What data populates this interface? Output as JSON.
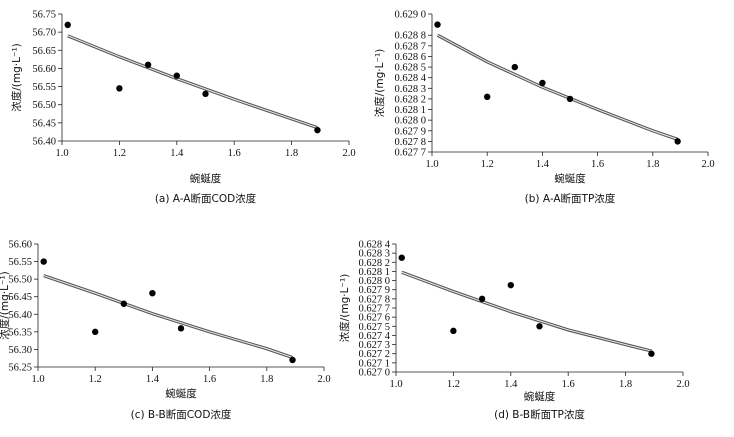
{
  "chart_data": [
    {
      "type": "scatter",
      "title": "",
      "caption": "(a) A-A断面COD浓度",
      "xlabel": "蜿蜒度",
      "ylabel": "浓度/(mg·L⁻¹)",
      "xlim": [
        1.0,
        2.0
      ],
      "ylim": [
        56.4,
        56.75
      ],
      "xticks": [
        "1.0",
        "1.2",
        "1.4",
        "1.6",
        "1.8",
        "2.0"
      ],
      "yticks": [
        "56.40",
        "56.45",
        "56.50",
        "56.55",
        "56.60",
        "56.65",
        "56.70",
        "56.75"
      ],
      "points": [
        {
          "x": 1.02,
          "y": 56.72
        },
        {
          "x": 1.2,
          "y": 56.545
        },
        {
          "x": 1.3,
          "y": 56.61
        },
        {
          "x": 1.4,
          "y": 56.58
        },
        {
          "x": 1.5,
          "y": 56.53
        },
        {
          "x": 1.89,
          "y": 56.43
        }
      ],
      "fit": [
        {
          "x": 1.02,
          "y": 56.69
        },
        {
          "x": 1.2,
          "y": 56.632
        },
        {
          "x": 1.4,
          "y": 56.572
        },
        {
          "x": 1.6,
          "y": 56.515
        },
        {
          "x": 1.8,
          "y": 56.461
        },
        {
          "x": 1.89,
          "y": 56.437
        }
      ]
    },
    {
      "type": "scatter",
      "title": "",
      "caption": "(b) A-A断面TP浓度",
      "xlabel": "蜿蜒度",
      "ylabel": "浓度/(mg·L⁻¹)",
      "xlim": [
        1.0,
        2.0
      ],
      "ylim": [
        0.6277,
        0.629
      ],
      "xticks": [
        "1.0",
        "1.2",
        "1.4",
        "1.6",
        "1.8",
        "2.0"
      ],
      "yticks": [
        "0.627 7",
        "0.627 8",
        "0.627 9",
        "0.628 0",
        "0.628 1",
        "0.628 2",
        "0.628 3",
        "0.628 4",
        "0.628 5",
        "0.628 6",
        "0.628 7",
        "0.628 8",
        "0.629 0"
      ],
      "yticks_values": [
        0.6277,
        0.6278,
        0.6279,
        0.628,
        0.6281,
        0.6282,
        0.6283,
        0.6284,
        0.6285,
        0.6286,
        0.6287,
        0.6288,
        0.629
      ],
      "points": [
        {
          "x": 1.02,
          "y": 0.6289
        },
        {
          "x": 1.2,
          "y": 0.62822
        },
        {
          "x": 1.3,
          "y": 0.6285
        },
        {
          "x": 1.4,
          "y": 0.62835
        },
        {
          "x": 1.5,
          "y": 0.6282
        },
        {
          "x": 1.89,
          "y": 0.6278
        }
      ],
      "fit": [
        {
          "x": 1.02,
          "y": 0.6288
        },
        {
          "x": 1.2,
          "y": 0.62855
        },
        {
          "x": 1.4,
          "y": 0.62831
        },
        {
          "x": 1.6,
          "y": 0.6281
        },
        {
          "x": 1.8,
          "y": 0.6279
        },
        {
          "x": 1.89,
          "y": 0.62782
        }
      ]
    },
    {
      "type": "scatter",
      "title": "",
      "caption": "(c) B-B断面COD浓度",
      "xlabel": "蜿蜒度",
      "ylabel": "浓度/(mg·L⁻¹)",
      "xlim": [
        1.0,
        2.0
      ],
      "ylim": [
        56.25,
        56.6
      ],
      "xticks": [
        "1.0",
        "1.2",
        "1.4",
        "1.6",
        "1.8",
        "2.0"
      ],
      "yticks": [
        "56.25",
        "56.30",
        "56.35",
        "56.40",
        "56.45",
        "56.50",
        "56.55",
        "56.60"
      ],
      "points": [
        {
          "x": 1.02,
          "y": 56.55
        },
        {
          "x": 1.2,
          "y": 56.35
        },
        {
          "x": 1.3,
          "y": 56.43
        },
        {
          "x": 1.4,
          "y": 56.46
        },
        {
          "x": 1.5,
          "y": 56.36
        },
        {
          "x": 1.89,
          "y": 56.27
        }
      ],
      "fit": [
        {
          "x": 1.02,
          "y": 56.51
        },
        {
          "x": 1.2,
          "y": 56.46
        },
        {
          "x": 1.4,
          "y": 56.402
        },
        {
          "x": 1.6,
          "y": 56.35
        },
        {
          "x": 1.8,
          "y": 56.302
        },
        {
          "x": 1.89,
          "y": 56.277
        }
      ]
    },
    {
      "type": "scatter",
      "title": "",
      "caption": "(d) B-B断面TP浓度",
      "xlabel": "蜿蜒度",
      "ylabel": "浓度/(mg·L⁻¹)",
      "xlim": [
        1.0,
        2.0
      ],
      "ylim": [
        0.627,
        0.6284
      ],
      "xticks": [
        "1.0",
        "1.2",
        "1.4",
        "1.6",
        "1.8",
        "2.0"
      ],
      "yticks": [
        "0.627 0",
        "0.627 1",
        "0.627 2",
        "0.627 3",
        "0.627 4",
        "0.627 5",
        "0.627 6",
        "0.627 7",
        "0.627 8",
        "0.627 9",
        "0.628 0",
        "0.628 1",
        "0.628 2",
        "0.628 3",
        "0.628 4"
      ],
      "yticks_values": [
        0.627,
        0.6271,
        0.6272,
        0.6273,
        0.6274,
        0.6275,
        0.6276,
        0.6277,
        0.6278,
        0.6279,
        0.628,
        0.6281,
        0.6282,
        0.6283,
        0.6284
      ],
      "points": [
        {
          "x": 1.02,
          "y": 0.62825
        },
        {
          "x": 1.2,
          "y": 0.62745
        },
        {
          "x": 1.3,
          "y": 0.6278
        },
        {
          "x": 1.4,
          "y": 0.62795
        },
        {
          "x": 1.5,
          "y": 0.6275
        },
        {
          "x": 1.89,
          "y": 0.6272
        }
      ],
      "fit": [
        {
          "x": 1.02,
          "y": 0.62809
        },
        {
          "x": 1.2,
          "y": 0.62788
        },
        {
          "x": 1.4,
          "y": 0.62766
        },
        {
          "x": 1.6,
          "y": 0.62746
        },
        {
          "x": 1.8,
          "y": 0.6273
        },
        {
          "x": 1.89,
          "y": 0.62723
        }
      ]
    }
  ]
}
